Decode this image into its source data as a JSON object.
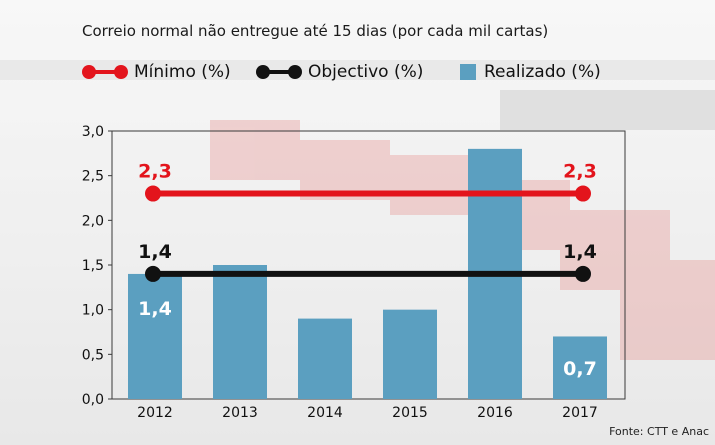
{
  "title": "Correio normal não entregue até 15 dias (por cada mil cartas)",
  "source": "Fonte: CTT e Anac",
  "colors": {
    "minimo": "#e3141c",
    "objectivo": "#111111",
    "realizado": "#5b9fc0"
  },
  "chart_data": {
    "type": "bar",
    "categories": [
      "2012",
      "2013",
      "2014",
      "2015",
      "2016",
      "2017"
    ],
    "ylim": [
      0,
      3.0
    ],
    "yticks": [
      "0,0",
      "0,5",
      "1,0",
      "1,5",
      "2,0",
      "2,5",
      "3,0"
    ],
    "series": [
      {
        "name": "Mínimo (%)",
        "kind": "line",
        "values": [
          2.3,
          2.3,
          2.3,
          2.3,
          2.3,
          2.3
        ],
        "labels": [
          {
            "category": "2012",
            "text": "2,3"
          },
          {
            "category": "2017",
            "text": "2,3"
          }
        ]
      },
      {
        "name": "Objectivo (%)",
        "kind": "line",
        "values": [
          1.4,
          1.4,
          1.4,
          1.4,
          1.4,
          1.4
        ],
        "labels": [
          {
            "category": "2012",
            "text": "1,4"
          },
          {
            "category": "2017",
            "text": "1,4"
          }
        ]
      },
      {
        "name": "Realizado (%)",
        "kind": "bar",
        "values": [
          1.4,
          1.5,
          0.9,
          1.0,
          2.8,
          0.7
        ],
        "labels": [
          {
            "category": "2012",
            "text": "1,4"
          },
          {
            "category": "2017",
            "text": "0,7"
          }
        ]
      }
    ]
  }
}
